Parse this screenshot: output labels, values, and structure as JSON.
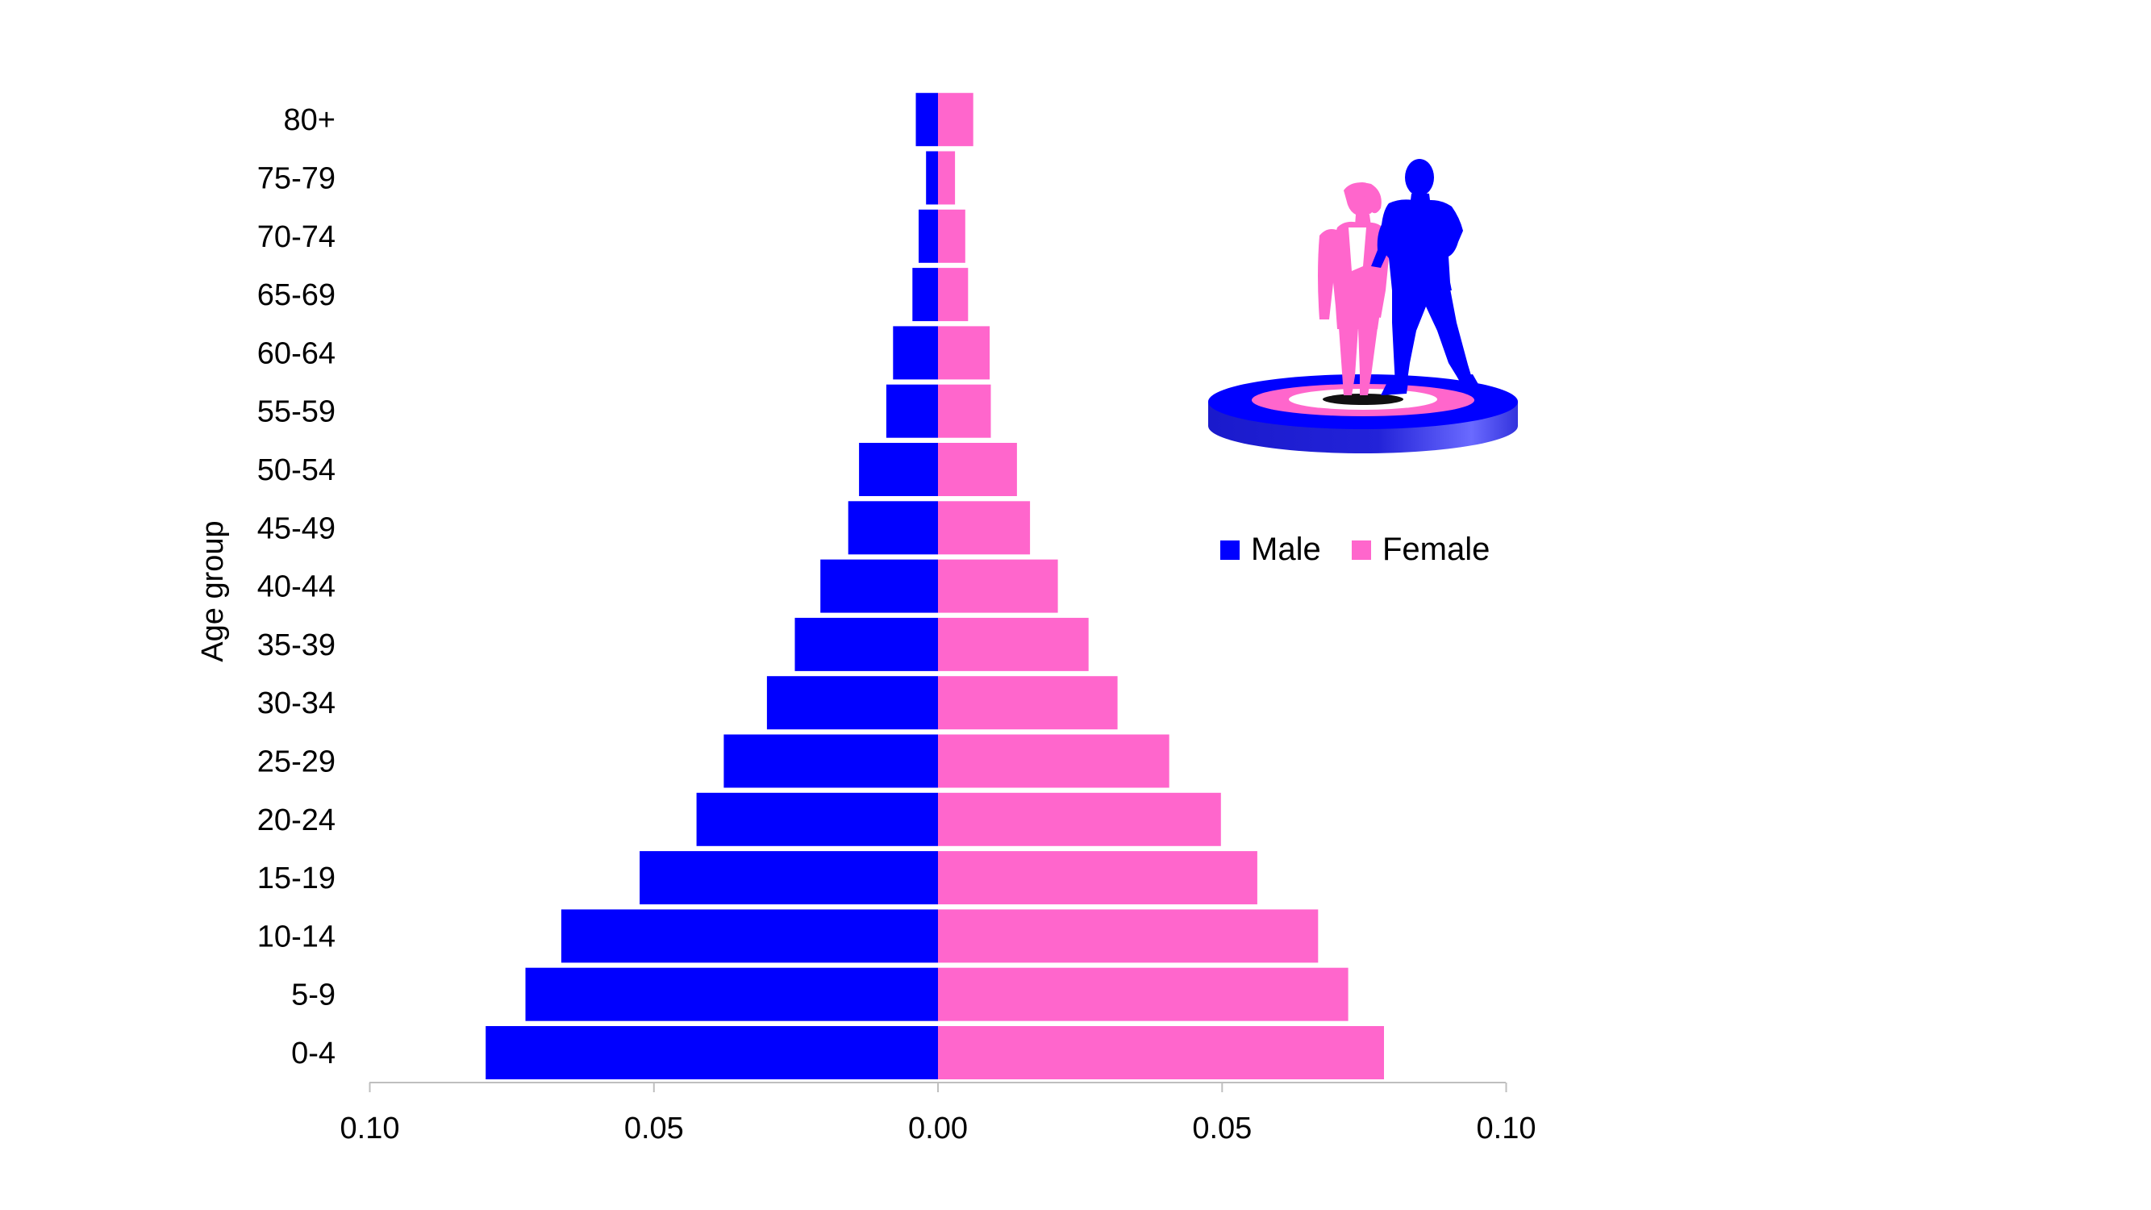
{
  "chart_data": {
    "type": "bar",
    "orientation": "horizontal",
    "title": "",
    "ylabel": "Age group",
    "xlabel": "",
    "categories": [
      "0-4",
      "5-9",
      "10-14",
      "15-19",
      "20-24",
      "25-29",
      "30-34",
      "35-39",
      "40-44",
      "45-49",
      "50-54",
      "55-59",
      "60-64",
      "65-69",
      "70-74",
      "75-79",
      "80+"
    ],
    "series": [
      {
        "name": "Male",
        "color": "#0000ff",
        "values": [
          0.0796,
          0.0726,
          0.0663,
          0.0525,
          0.0425,
          0.0377,
          0.0301,
          0.0252,
          0.0207,
          0.0158,
          0.0139,
          0.0091,
          0.0079,
          0.0045,
          0.0034,
          0.0021,
          0.0039
        ]
      },
      {
        "name": "Female",
        "color": "#ff66cc",
        "values": [
          0.0785,
          0.0722,
          0.0669,
          0.0562,
          0.0498,
          0.0407,
          0.0316,
          0.0265,
          0.0211,
          0.0162,
          0.0139,
          0.0093,
          0.0091,
          0.0053,
          0.0048,
          0.003,
          0.0062
        ]
      }
    ],
    "xlim": [
      -0.1,
      0.1
    ],
    "x_ticks": [
      -0.1,
      -0.05,
      0.0,
      0.05,
      0.1
    ],
    "x_tick_labels": [
      "0.10",
      "0.05",
      "0.00",
      "0.05",
      "0.10"
    ],
    "grid": false,
    "legend": {
      "position": "top-right",
      "entries": [
        "Male",
        "Female"
      ]
    },
    "decoration": "silhouettes-icon"
  }
}
